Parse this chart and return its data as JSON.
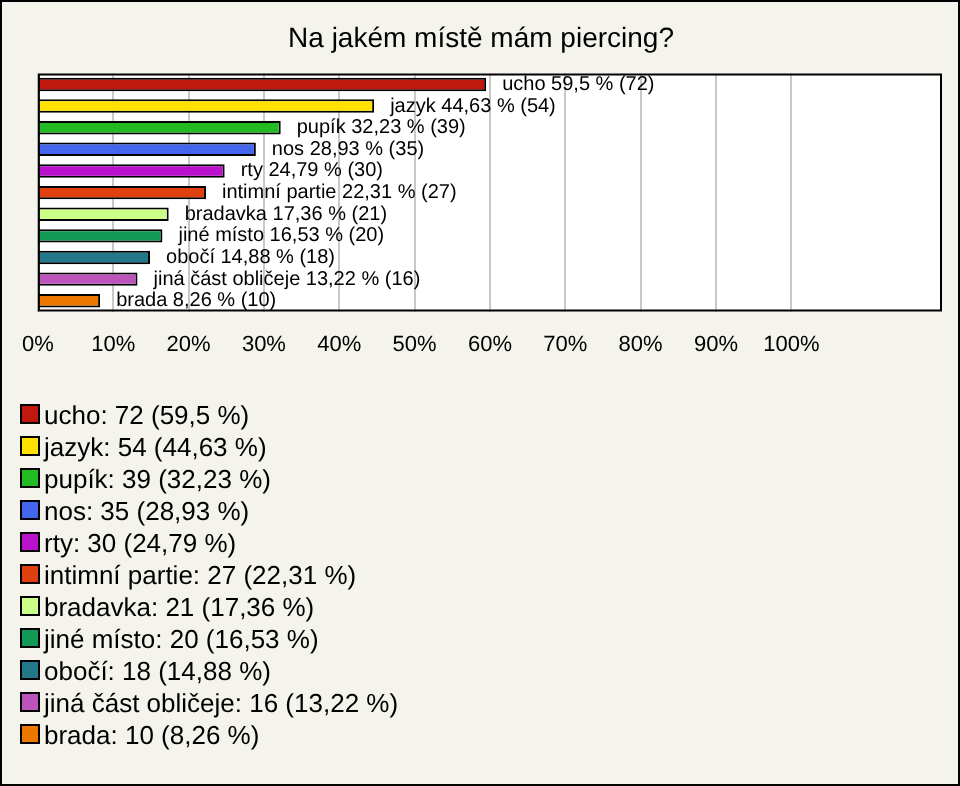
{
  "chart_data": {
    "type": "bar",
    "orientation": "horizontal",
    "title": "Na jakém místě mám piercing?",
    "categories": [
      null,
      null,
      null,
      null,
      null,
      null,
      null,
      null,
      null,
      null,
      null
    ],
    "series": [
      {
        "name": "ucho: 72 (59,5 %)",
        "color": "#c0170f",
        "values": [
          59.5,
          null,
          null,
          null,
          null,
          null,
          null,
          null,
          null,
          null,
          null
        ],
        "value_labels": [
          "ucho 59,5 % (72)",
          null,
          null,
          null,
          null,
          null,
          null,
          null,
          null,
          null,
          null
        ]
      },
      {
        "name": "jazyk: 54 (44,63 %)",
        "color": "#ffe000",
        "values": [
          null,
          44.63,
          null,
          null,
          null,
          null,
          null,
          null,
          null,
          null,
          null
        ],
        "value_labels": [
          null,
          "jazyk 44,63 % (54)",
          null,
          null,
          null,
          null,
          null,
          null,
          null,
          null,
          null
        ]
      },
      {
        "name": "pupík: 39 (32,23 %)",
        "color": "#22bb22",
        "values": [
          null,
          null,
          32.23,
          null,
          null,
          null,
          null,
          null,
          null,
          null,
          null
        ],
        "value_labels": [
          null,
          null,
          "pupík 32,23 % (39)",
          null,
          null,
          null,
          null,
          null,
          null,
          null,
          null
        ]
      },
      {
        "name": "nos: 35 (28,93 %)",
        "color": "#4466ee",
        "values": [
          null,
          null,
          null,
          28.93,
          null,
          null,
          null,
          null,
          null,
          null,
          null
        ],
        "value_labels": [
          null,
          null,
          null,
          "nos 28,93 % (35)",
          null,
          null,
          null,
          null,
          null,
          null,
          null
        ]
      },
      {
        "name": "rty: 30 (24,79 %)",
        "color": "#bb11cc",
        "values": [
          null,
          null,
          null,
          null,
          24.79,
          null,
          null,
          null,
          null,
          null,
          null
        ],
        "value_labels": [
          null,
          null,
          null,
          null,
          "rty 24,79 % (30)",
          null,
          null,
          null,
          null,
          null,
          null
        ]
      },
      {
        "name": "intimní partie: 27 (22,31 %)",
        "color": "#e04010",
        "values": [
          null,
          null,
          null,
          null,
          null,
          22.31,
          null,
          null,
          null,
          null,
          null
        ],
        "value_labels": [
          null,
          null,
          null,
          null,
          null,
          "intimní partie 22,31 % (27)",
          null,
          null,
          null,
          null,
          null
        ]
      },
      {
        "name": "bradavka: 21 (17,36 %)",
        "color": "#ccff88",
        "values": [
          null,
          null,
          null,
          null,
          null,
          null,
          17.36,
          null,
          null,
          null,
          null
        ],
        "value_labels": [
          null,
          null,
          null,
          null,
          null,
          null,
          "bradavka 17,36 % (21)",
          null,
          null,
          null,
          null
        ]
      },
      {
        "name": "jiné místo: 20 (16,53 %)",
        "color": "#119955",
        "values": [
          null,
          null,
          null,
          null,
          null,
          null,
          null,
          16.53,
          null,
          null,
          null
        ],
        "value_labels": [
          null,
          null,
          null,
          null,
          null,
          null,
          null,
          "jiné místo 16,53 % (20)",
          null,
          null,
          null
        ]
      },
      {
        "name": "obočí: 18 (14,88 %)",
        "color": "#227788",
        "values": [
          null,
          null,
          null,
          null,
          null,
          null,
          null,
          null,
          14.88,
          null,
          null
        ],
        "value_labels": [
          null,
          null,
          null,
          null,
          null,
          null,
          null,
          null,
          "obočí 14,88 % (18)",
          null,
          null
        ]
      },
      {
        "name": "jiná část obličeje: 16 (13,22 %)",
        "color": "#bb55bb",
        "values": [
          null,
          null,
          null,
          null,
          null,
          null,
          null,
          null,
          null,
          13.22,
          null
        ],
        "value_labels": [
          null,
          null,
          null,
          null,
          null,
          null,
          null,
          null,
          null,
          "jiná část obličeje 13,22 % (16)",
          null
        ]
      },
      {
        "name": "brada: 10 (8,26 %)",
        "color": "#ee7700",
        "values": [
          null,
          null,
          null,
          null,
          null,
          null,
          null,
          null,
          null,
          null,
          8.26
        ],
        "value_labels": [
          null,
          null,
          null,
          null,
          null,
          null,
          null,
          null,
          null,
          null,
          "brada 8,26 % (10)"
        ]
      }
    ],
    "xlim": [
      0,
      120
    ],
    "xticks": [
      {
        "value": 0,
        "label": "0%"
      },
      {
        "value": 10,
        "label": "10%"
      },
      {
        "value": 20,
        "label": "20%"
      },
      {
        "value": 30,
        "label": "30%"
      },
      {
        "value": 40,
        "label": "40%"
      },
      {
        "value": 50,
        "label": "50%"
      },
      {
        "value": 60,
        "label": "60%"
      },
      {
        "value": 70,
        "label": "70%"
      },
      {
        "value": 80,
        "label": "80%"
      },
      {
        "value": 90,
        "label": "90%"
      },
      {
        "value": 100,
        "label": "100%"
      }
    ],
    "grid": "x",
    "tick_labels": "x",
    "legend": "bottom"
  }
}
